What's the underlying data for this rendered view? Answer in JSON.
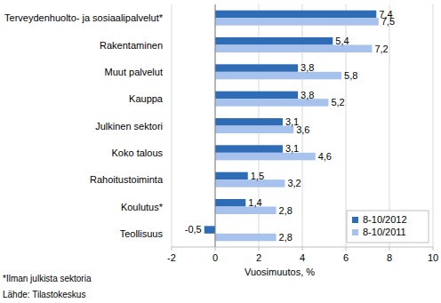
{
  "chart_data": {
    "type": "bar",
    "orientation": "horizontal",
    "categories": [
      "Terveydenhuolto- ja sosiaalipalvelut*",
      "Rakentaminen",
      "Muut palvelut",
      "Kauppa",
      "Julkinen sektori",
      "Koko talous",
      "Rahoitustoiminta",
      "Koulutus*",
      "Teollisuus"
    ],
    "series": [
      {
        "name": "8-10/2012",
        "color": "#2f6cb6",
        "values": [
          7.4,
          5.4,
          3.8,
          3.8,
          3.1,
          3.1,
          1.5,
          1.4,
          -0.5
        ],
        "value_labels": [
          "7,4",
          "5,4",
          "3,8",
          "3,8",
          "3,1",
          "3,1",
          "1,5",
          "1,4",
          "-0,5"
        ]
      },
      {
        "name": "8-10/2011",
        "color": "#a7c2ec",
        "values": [
          7.5,
          7.2,
          5.8,
          5.2,
          3.6,
          4.6,
          3.2,
          2.8,
          2.8
        ],
        "value_labels": [
          "7,5",
          "7,2",
          "5,8",
          "5,2",
          "3,6",
          "4,6",
          "3,2",
          "2,8",
          "2,8"
        ]
      }
    ],
    "xlim": [
      -2,
      10
    ],
    "xticks": [
      -2,
      0,
      2,
      4,
      6,
      8,
      10
    ],
    "x_label": "Vuosimuutos, %",
    "notes": [
      "*Ilman julkista sektoria",
      "Lähde: Tilastokeskus"
    ],
    "grid": true,
    "legend": "bottom-right",
    "data_labels": true
  }
}
